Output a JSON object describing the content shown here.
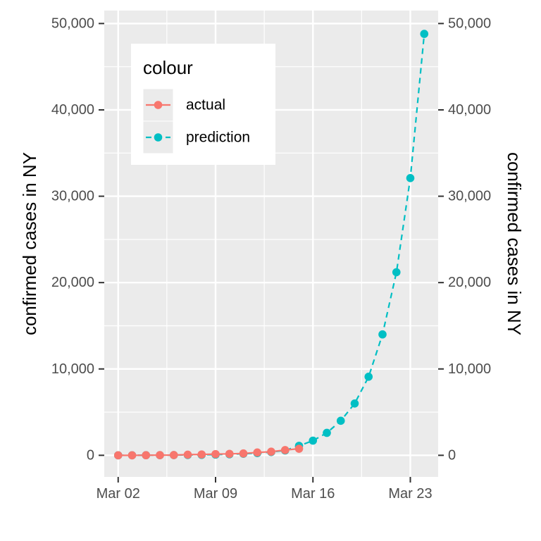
{
  "chart_data": {
    "type": "line",
    "y_axis_left_label": "confirmed cases in NY",
    "y_axis_right_label": "confirmed cases in NY",
    "xlim": [
      "2020-03-01",
      "2020-03-25"
    ],
    "ylim": [
      -2500,
      51500
    ],
    "x_ticks": [
      {
        "date": "2020-03-02",
        "label": "Mar 02"
      },
      {
        "date": "2020-03-09",
        "label": "Mar 09"
      },
      {
        "date": "2020-03-16",
        "label": "Mar 16"
      },
      {
        "date": "2020-03-23",
        "label": "Mar 23"
      }
    ],
    "y_ticks": [
      {
        "value": 0,
        "label": "0"
      },
      {
        "value": 10000,
        "label": "10,000"
      },
      {
        "value": 20000,
        "label": "20,000"
      },
      {
        "value": 30000,
        "label": "30,000"
      },
      {
        "value": 40000,
        "label": "40,000"
      },
      {
        "value": 50000,
        "label": "50,000"
      }
    ],
    "grid": true,
    "legend": {
      "title": "colour",
      "position": "top-left"
    },
    "series": [
      {
        "name": "prediction",
        "color": "#00BFC4",
        "line_style": "dashed",
        "x": [
          "2020-03-02",
          "2020-03-03",
          "2020-03-04",
          "2020-03-05",
          "2020-03-06",
          "2020-03-07",
          "2020-03-08",
          "2020-03-09",
          "2020-03-10",
          "2020-03-11",
          "2020-03-12",
          "2020-03-13",
          "2020-03-14",
          "2020-03-15",
          "2020-03-16",
          "2020-03-17",
          "2020-03-18",
          "2020-03-19",
          "2020-03-20",
          "2020-03-21",
          "2020-03-22",
          "2020-03-23",
          "2020-03-24"
        ],
        "y": [
          0,
          5,
          10,
          15,
          25,
          35,
          50,
          80,
          120,
          175,
          260,
          380,
          560,
          1100,
          1700,
          2600,
          4000,
          6000,
          9100,
          14000,
          21200,
          32100,
          48800
        ]
      },
      {
        "name": "actual",
        "color": "#F8766D",
        "line_style": "solid",
        "x": [
          "2020-03-02",
          "2020-03-03",
          "2020-03-04",
          "2020-03-05",
          "2020-03-06",
          "2020-03-07",
          "2020-03-08",
          "2020-03-09",
          "2020-03-10",
          "2020-03-11",
          "2020-03-12",
          "2020-03-13",
          "2020-03-14",
          "2020-03-15"
        ],
        "y": [
          0,
          0,
          10,
          20,
          30,
          75,
          100,
          140,
          170,
          215,
          330,
          420,
          610,
          760
        ]
      }
    ]
  }
}
